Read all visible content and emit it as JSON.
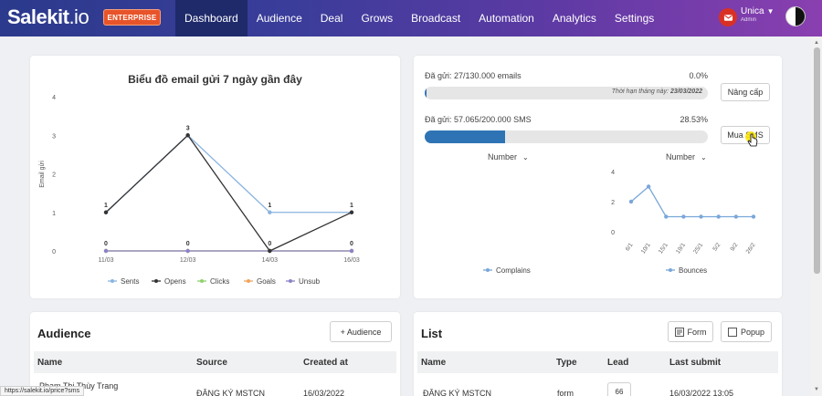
{
  "nav": {
    "logo_main": "Salekit",
    "logo_suffix": ".io",
    "badge": "ENTERPRISE",
    "menu": [
      "Dashboard",
      "Audience",
      "Deal",
      "Grows",
      "Broadcast",
      "Automation",
      "Analytics",
      "Settings"
    ],
    "user_name": "Unica",
    "user_role": "Admin"
  },
  "email_chart": {
    "title": "Biểu đồ email gửi 7 ngày gần đây",
    "ylabel": "Email gửi"
  },
  "chart_data": [
    {
      "type": "line",
      "title": "Biểu đồ email gửi 7 ngày gần đây",
      "ylabel": "Email gửi",
      "categories": [
        "11/03",
        "12/03",
        "14/03",
        "16/03"
      ],
      "ylim": [
        0,
        4
      ],
      "yticks": [
        0,
        1,
        2,
        3,
        4
      ],
      "series": [
        {
          "name": "Sents",
          "color": "#8ab4e0",
          "values": [
            1,
            3,
            1,
            1
          ]
        },
        {
          "name": "Opens",
          "color": "#333333",
          "values": [
            1,
            3,
            0,
            1
          ]
        },
        {
          "name": "Clicks",
          "color": "#8ed36b",
          "values": [
            0,
            0,
            0,
            0
          ]
        },
        {
          "name": "Goals",
          "color": "#f0a35a",
          "values": [
            0,
            0,
            0,
            0
          ]
        },
        {
          "name": "Unsub",
          "color": "#8a82c9",
          "values": [
            0,
            0,
            0,
            0
          ]
        }
      ],
      "point_labels": [
        1,
        3,
        1,
        1
      ],
      "zero_labels": [
        0,
        0,
        0,
        0
      ],
      "legend_position": "bottom",
      "grid": false
    },
    {
      "type": "line",
      "categories": [
        "6/1",
        "10/1",
        "15/1",
        "19/1",
        "25/1",
        "5/2",
        "9/2",
        "26/2"
      ],
      "ylim": [
        0,
        4
      ],
      "yticks": [
        0,
        2,
        4
      ],
      "series": [
        {
          "name": "Bounces",
          "color": "#7aa7d9",
          "values": [
            2,
            3,
            1,
            1,
            1,
            1,
            1,
            1
          ]
        }
      ],
      "legend_position": "bottom",
      "grid": false
    },
    {
      "type": "line",
      "series": [
        {
          "name": "Complains",
          "color": "#7aa7d9",
          "values": []
        }
      ],
      "legend_position": "bottom"
    }
  ],
  "usage": {
    "email_label": "Đã gửi: 27/130.000 emails",
    "email_pct_text": "0.0%",
    "email_fraction": 0.0002,
    "expiry_prefix": "Thời hạn tháng này: ",
    "expiry_date": "23/03/2022",
    "upgrade_label": "Nâng cấp",
    "sms_label": "Đã gửi: 57.065/200.000 SMS",
    "sms_pct_text": "28.53%",
    "sms_fraction": 0.2853,
    "buy_sms_label": "Mua SMS",
    "select_left": "Number",
    "select_right": "Number"
  },
  "audience": {
    "title": "Audience",
    "add_label": "+ Audience",
    "columns": [
      "Name",
      "Source",
      "Created at"
    ],
    "rows": [
      {
        "name": "Phạm Thị Thùy Trang",
        "source": "ĐĂNG KÝ MSTCN",
        "created": "16/03/2022"
      }
    ]
  },
  "list": {
    "title": "List",
    "form_label": "Form",
    "popup_label": "Popup",
    "columns": [
      "Name",
      "Type",
      "Lead",
      "Last submit"
    ],
    "rows": [
      {
        "name": "ĐĂNG KÝ MSTCN",
        "type": "form",
        "lead": "66",
        "last": "16/03/2022 13:05"
      }
    ]
  },
  "status_url": "https://salekit.io/price?sms"
}
